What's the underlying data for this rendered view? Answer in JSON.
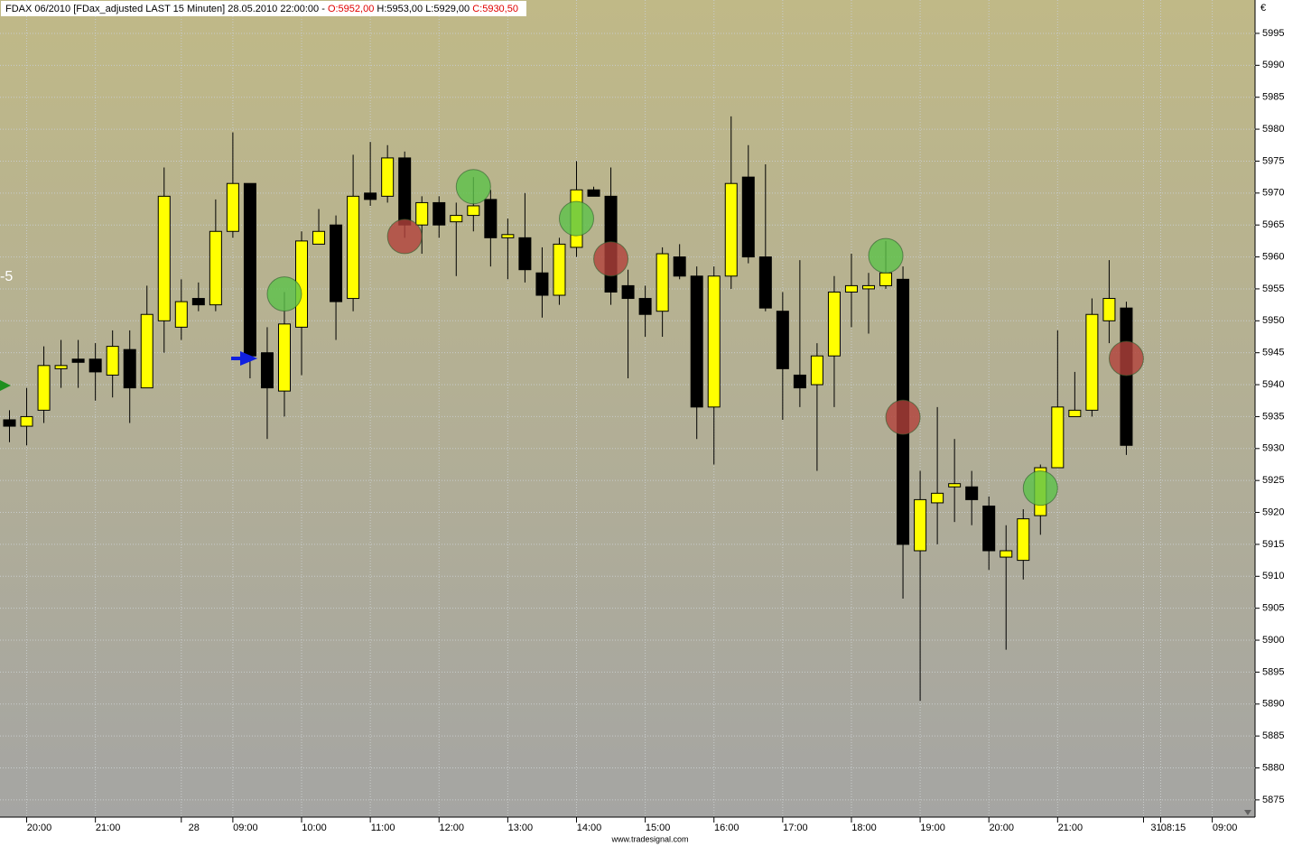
{
  "chart_data": {
    "type": "candlestick",
    "header": {
      "title": "FDAX 06/2010 [FDax_adjusted LAST 15 Minuten] 28.05.2010 22:00:00 -",
      "open": "O:5952,00",
      "high_low": "H:5953,00 L:5929,00",
      "close": "C:5930,50"
    },
    "currency": "€",
    "side_label": "-5",
    "footer": "www.tradesignal.com",
    "categories": [
      null,
      "20:00",
      null,
      null,
      null,
      "21:00",
      null,
      null,
      null,
      null,
      "28",
      null,
      null,
      "09:00",
      null,
      null,
      null,
      "10:00",
      null,
      null,
      null,
      "11:00",
      null,
      null,
      null,
      "12:00",
      null,
      null,
      null,
      "13:00",
      null,
      null,
      null,
      "14:00",
      null,
      null,
      null,
      "15:00",
      null,
      null,
      null,
      "16:00",
      null,
      null,
      null,
      "17:00",
      null,
      null,
      null,
      "18:00",
      null,
      null,
      null,
      "19:00",
      null,
      null,
      null,
      "20:00",
      null,
      null,
      null,
      "21:00",
      null,
      null,
      null,
      null,
      "31",
      "08:15",
      null,
      null,
      "09:00"
    ],
    "open": [
      5934.5,
      5933.5,
      5936,
      5942.5,
      5944,
      5944,
      5941.5,
      5945.5,
      5939.5,
      5950,
      5949,
      5953.5,
      5952.5,
      5964,
      5971.5,
      5945,
      5939,
      5949,
      5962,
      5965,
      5953.5,
      5970,
      5969.5,
      5975.5,
      5965,
      5968.5,
      5965.5,
      5966.5,
      5969,
      5963,
      5963,
      5957.5,
      5954,
      5961.5,
      5970.5,
      5969.5,
      5955.5,
      5953.5,
      5951.5,
      5960,
      5957,
      5936.5,
      5957,
      5972.5,
      5960,
      5951.5,
      5941.5,
      5940,
      5944.5,
      5954.5,
      5955,
      5955.5,
      5956.5,
      5914,
      5921.5,
      5924,
      5924,
      5921,
      5913,
      5912.5,
      5919.5,
      5927,
      5935,
      5936,
      5950,
      5952,
      null,
      null,
      null,
      null,
      null
    ],
    "high": [
      5936,
      5939.5,
      5946,
      5947,
      5947,
      5946.5,
      5948.5,
      5948.5,
      5955.5,
      5974,
      5956.5,
      5956,
      5969,
      5979.5,
      5971.5,
      5949,
      5954.5,
      5964,
      5967.5,
      5966.5,
      5976,
      5978,
      5977.5,
      5976.5,
      5969.5,
      5969.5,
      5968.5,
      5972.5,
      5970.5,
      5966,
      5970,
      5961.5,
      5963,
      5975,
      5971,
      5974,
      5958,
      5955.5,
      5961.5,
      5962,
      5958.5,
      5958.5,
      5982,
      5977.5,
      5974.5,
      5954.5,
      5959.5,
      5946.5,
      5957,
      5960.5,
      5957.5,
      5962.5,
      5958.5,
      5926.5,
      5936.5,
      5931.5,
      5926.5,
      5922.5,
      5918,
      5920.5,
      5927.5,
      5948.5,
      5942,
      5953.5,
      5959.5,
      5953,
      null,
      null,
      null,
      null,
      null
    ],
    "low": [
      5931,
      5930.5,
      5934,
      5939.5,
      5939.5,
      5937.5,
      5938,
      5934,
      5939.5,
      5945,
      5947,
      5951.5,
      5951.5,
      5963,
      5941,
      5931.5,
      5935,
      5941.5,
      5962,
      5947,
      5951.5,
      5968,
      5968.5,
      5963,
      5960.5,
      5963,
      5957,
      5964,
      5958.5,
      5956.5,
      5956,
      5950.5,
      5952.5,
      5960,
      5969.5,
      5952.5,
      5941,
      5947.5,
      5947.5,
      5956.5,
      5931.5,
      5927.5,
      5955,
      5959,
      5951.5,
      5934.5,
      5936.5,
      5926.5,
      5936.5,
      5949,
      5948,
      5955,
      5906.5,
      5890.5,
      5915,
      5918.5,
      5918,
      5911,
      5898.5,
      5909.5,
      5916.5,
      5927,
      5935,
      5935,
      5946.5,
      5929,
      null,
      null,
      null,
      null,
      null
    ],
    "close": [
      5933.5,
      5935,
      5943,
      5943,
      5943.5,
      5942,
      5946,
      5939.5,
      5951,
      5969.5,
      5953,
      5952.5,
      5964,
      5971.5,
      5944.5,
      5939.5,
      5949.5,
      5962.5,
      5964,
      5953,
      5969.5,
      5969,
      5975.5,
      5965,
      5968.5,
      5965,
      5966.5,
      5968,
      5963,
      5963.5,
      5958,
      5954,
      5962,
      5970.5,
      5969.5,
      5954.5,
      5953.5,
      5951,
      5960.5,
      5957,
      5936.5,
      5957,
      5971.5,
      5960,
      5952,
      5942.5,
      5939.5,
      5944.5,
      5954.5,
      5955.5,
      5955.5,
      5957.5,
      5915,
      5922,
      5923,
      5924.5,
      5922,
      5914,
      5914,
      5919,
      5927,
      5936.5,
      5936,
      5951,
      5953.5,
      5930.5,
      null,
      null,
      null,
      null,
      null
    ],
    "long_signals": [
      null,
      null,
      null,
      null,
      null,
      null,
      null,
      null,
      null,
      null,
      null,
      null,
      null,
      null,
      null,
      null,
      5954.2,
      null,
      null,
      null,
      null,
      null,
      null,
      null,
      null,
      null,
      null,
      5971,
      null,
      null,
      null,
      null,
      null,
      5966,
      null,
      null,
      null,
      null,
      null,
      null,
      null,
      null,
      null,
      null,
      null,
      null,
      null,
      null,
      null,
      null,
      null,
      5960.2,
      null,
      null,
      null,
      null,
      null,
      null,
      null,
      null,
      5923.8,
      null,
      null,
      null,
      null,
      null,
      null,
      null,
      null,
      null,
      null
    ],
    "short_signals": [
      null,
      null,
      null,
      null,
      null,
      null,
      null,
      null,
      null,
      null,
      null,
      null,
      null,
      null,
      null,
      null,
      null,
      null,
      null,
      null,
      null,
      null,
      null,
      5963.2,
      null,
      null,
      null,
      null,
      null,
      null,
      null,
      null,
      null,
      null,
      null,
      5959.7,
      null,
      null,
      null,
      null,
      null,
      null,
      null,
      null,
      null,
      null,
      null,
      null,
      null,
      null,
      null,
      null,
      5934.9,
      null,
      null,
      null,
      null,
      null,
      null,
      null,
      null,
      null,
      null,
      null,
      null,
      5944.1,
      null,
      null,
      null,
      null,
      null
    ],
    "up_color": "#ffff00",
    "down_color": "#000000",
    "long_color": "#5cc24a",
    "short_color": "#b2413b",
    "ylim": [
      5872.3,
      5999.8
    ],
    "yticks": [
      5875,
      5880,
      5885,
      5890,
      5895,
      5900,
      5905,
      5910,
      5915,
      5920,
      5925,
      5930,
      5935,
      5940,
      5945,
      5950,
      5955,
      5960,
      5965,
      5970,
      5975,
      5980,
      5985,
      5990,
      5995
    ],
    "grid": true
  }
}
